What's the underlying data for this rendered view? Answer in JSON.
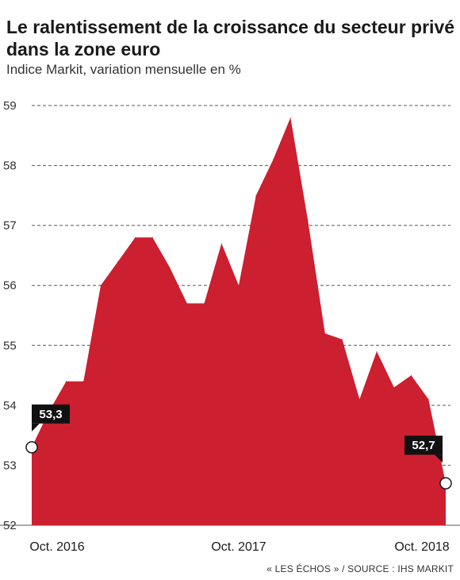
{
  "header": {
    "title": "Le ralentissement de la croissance du secteur privé dans la zone euro",
    "subtitle": "Indice Markit, variation mensuelle en %"
  },
  "footer": {
    "source": "« LES ÉCHOS » / SOURCE : IHS MARKIT"
  },
  "colors": {
    "fill": "#cc1f2f",
    "grid": "#555555",
    "label_bg": "#111111"
  },
  "chart_data": {
    "type": "area",
    "ylim": [
      52,
      59
    ],
    "yticks": [
      "52",
      "53",
      "54",
      "55",
      "56",
      "57",
      "58",
      "59"
    ],
    "xticks": [
      {
        "label": "Oct. 2016",
        "index": 0
      },
      {
        "label": "Oct. 2017",
        "index": 12
      },
      {
        "label": "Oct. 2018",
        "index": 24
      }
    ],
    "grid": true,
    "x": [
      "2016-10",
      "2016-11",
      "2016-12",
      "2017-01",
      "2017-02",
      "2017-03",
      "2017-04",
      "2017-05",
      "2017-06",
      "2017-07",
      "2017-08",
      "2017-09",
      "2017-10",
      "2017-11",
      "2017-12",
      "2018-01",
      "2018-02",
      "2018-03",
      "2018-04",
      "2018-05",
      "2018-06",
      "2018-07",
      "2018-08",
      "2018-09",
      "2018-10"
    ],
    "values": [
      53.3,
      53.9,
      54.4,
      54.4,
      56.0,
      56.4,
      56.8,
      56.8,
      56.3,
      55.7,
      55.7,
      56.7,
      56.0,
      57.5,
      58.1,
      58.8,
      57.1,
      55.2,
      55.1,
      54.1,
      54.9,
      54.3,
      54.5,
      54.1,
      52.7
    ],
    "annotations": [
      {
        "index": 0,
        "text": "53,3"
      },
      {
        "index": 24,
        "text": "52,7"
      }
    ]
  }
}
